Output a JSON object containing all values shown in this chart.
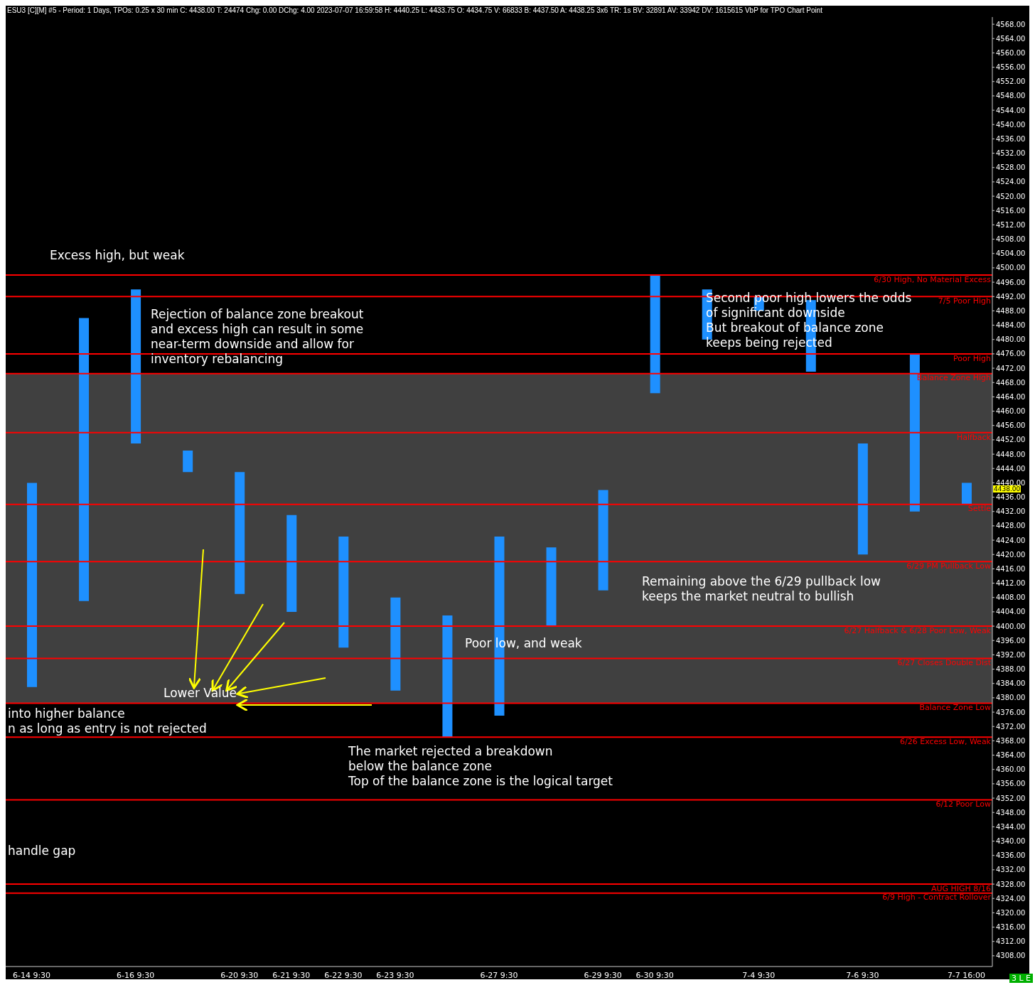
{
  "chart_data": {
    "type": "bar",
    "title": "ESU3 [C][M]  #5 - Period: 1 Days, TPOs: 0.25 x 30 min  C: 4438.00  T: 24474  Chg: 0.00  DChg: 4.00  2023-07-07 16:59:58  H: 4440.25  L: 4433.75  O: 4434.75  V: 66833  B: 4437.50  A: 4438.25  3x6  TR: 1s  BV: 32891  AV: 33942  DV: 1615615  VbP for TPO Chart  Point",
    "categories": [
      "6-14  9:30",
      null,
      "6-16  9:30",
      null,
      "6-20  9:30",
      "6-21  9:30",
      "6-22  9:30",
      "6-23  9:30",
      null,
      "6-27  9:30",
      null,
      "6-29  9:30",
      "6-30  9:30",
      null,
      "7-4  9:30",
      null,
      "7-6  9:30",
      null,
      "7-7  16:00"
    ],
    "base": [
      4383,
      4407,
      4451,
      4443,
      4409,
      4404,
      4394,
      4382,
      4369,
      4375,
      4400,
      4410,
      4465,
      4480,
      4488,
      4471,
      4420,
      4432,
      4434
    ],
    "values": [
      57,
      79,
      43,
      6,
      34,
      27,
      31,
      26,
      34,
      50,
      22,
      28,
      33,
      14,
      4,
      20,
      31,
      44,
      6
    ],
    "color": "#1e90ff",
    "ylim": [
      4305,
      4570
    ],
    "yticks": [
      {
        "value": 4308,
        "label": "4308.00"
      },
      {
        "value": 4312,
        "label": "4312.00"
      },
      {
        "value": 4316,
        "label": "4316.00"
      },
      {
        "value": 4320,
        "label": "4320.00"
      },
      {
        "value": 4324,
        "label": "4324.00"
      },
      {
        "value": 4328,
        "label": "4328.00"
      },
      {
        "value": 4332,
        "label": "4332.00"
      },
      {
        "value": 4336,
        "label": "4336.00"
      },
      {
        "value": 4340,
        "label": "4340.00"
      },
      {
        "value": 4344,
        "label": "4344.00"
      },
      {
        "value": 4348,
        "label": "4348.00"
      },
      {
        "value": 4352,
        "label": "4352.00"
      },
      {
        "value": 4356,
        "label": "4356.00"
      },
      {
        "value": 4360,
        "label": "4360.00"
      },
      {
        "value": 4364,
        "label": "4364.00"
      },
      {
        "value": 4368,
        "label": "4368.00"
      },
      {
        "value": 4372,
        "label": "4372.00"
      },
      {
        "value": 4376,
        "label": "4376.00"
      },
      {
        "value": 4380,
        "label": "4380.00"
      },
      {
        "value": 4384,
        "label": "4384.00"
      },
      {
        "value": 4388,
        "label": "4388.00"
      },
      {
        "value": 4392,
        "label": "4392.00"
      },
      {
        "value": 4396,
        "label": "4396.00"
      },
      {
        "value": 4400,
        "label": "4400.00"
      },
      {
        "value": 4404,
        "label": "4404.00"
      },
      {
        "value": 4408,
        "label": "4408.00"
      },
      {
        "value": 4412,
        "label": "4412.00"
      },
      {
        "value": 4416,
        "label": "4416.00"
      },
      {
        "value": 4420,
        "label": "4420.00"
      },
      {
        "value": 4424,
        "label": "4424.00"
      },
      {
        "value": 4428,
        "label": "4428.00"
      },
      {
        "value": 4432,
        "label": "4432.00"
      },
      {
        "value": 4436,
        "label": "4436.00"
      },
      {
        "value": 4440,
        "label": "4440.00"
      },
      {
        "value": 4444,
        "label": "4444.00"
      },
      {
        "value": 4448,
        "label": "4448.00"
      },
      {
        "value": 4452,
        "label": "4452.00"
      },
      {
        "value": 4456,
        "label": "4456.00"
      },
      {
        "value": 4460,
        "label": "4460.00"
      },
      {
        "value": 4464,
        "label": "4464.00"
      },
      {
        "value": 4468,
        "label": "4468.00"
      },
      {
        "value": 4472,
        "label": "4472.00"
      },
      {
        "value": 4476,
        "label": "4476.00"
      },
      {
        "value": 4480,
        "label": "4480.00"
      },
      {
        "value": 4484,
        "label": "4484.00"
      },
      {
        "value": 4488,
        "label": "4488.00"
      },
      {
        "value": 4492,
        "label": "4492.00"
      },
      {
        "value": 4496,
        "label": "4496.00"
      },
      {
        "value": 4500,
        "label": "4500.00"
      },
      {
        "value": 4504,
        "label": "4504.00"
      },
      {
        "value": 4508,
        "label": "4508.00"
      },
      {
        "value": 4512,
        "label": "4512.00"
      },
      {
        "value": 4516,
        "label": "4516.00"
      },
      {
        "value": 4520,
        "label": "4520.00"
      },
      {
        "value": 4524,
        "label": "4524.00"
      },
      {
        "value": 4528,
        "label": "4528.00"
      },
      {
        "value": 4532,
        "label": "4532.00"
      },
      {
        "value": 4536,
        "label": "4536.00"
      },
      {
        "value": 4540,
        "label": "4540.00"
      },
      {
        "value": 4544,
        "label": "4544.00"
      },
      {
        "value": 4548,
        "label": "4548.00"
      },
      {
        "value": 4552,
        "label": "4552.00"
      },
      {
        "value": 4556,
        "label": "4556.00"
      },
      {
        "value": 4560,
        "label": "4560.00"
      },
      {
        "value": 4564,
        "label": "4564.00"
      },
      {
        "value": 4568,
        "label": "4568.00"
      }
    ],
    "grid": false,
    "bands": [
      {
        "axis": "y",
        "from": 4378.5,
        "to": 4470.5,
        "label": null,
        "color": "#404040"
      }
    ],
    "ref_lines": [
      {
        "axis": "y",
        "value": 4498,
        "label": "6/30 High, No Material Excess",
        "color": "#ff0000"
      },
      {
        "axis": "y",
        "value": 4492,
        "label": "7/5 Poor High",
        "color": "#ff0000"
      },
      {
        "axis": "y",
        "value": 4476,
        "label": "Poor High",
        "color": "#ff0000"
      },
      {
        "axis": "y",
        "value": 4470.5,
        "label": "Balance Zone High",
        "color": "#ff0000"
      },
      {
        "axis": "y",
        "value": 4454,
        "label": "Halfback",
        "color": "#ff0000"
      },
      {
        "axis": "y",
        "value": 4434,
        "label": "Settle",
        "color": "#ff0000"
      },
      {
        "axis": "y",
        "value": 4418,
        "label": "6/29 PM Pullback Low",
        "color": "#ff0000"
      },
      {
        "axis": "y",
        "value": 4400,
        "label": "6/27 Halfback & 6/28 Poor Low, Weak",
        "color": "#ff0000"
      },
      {
        "axis": "y",
        "value": 4391,
        "label": "6/27 Closes Double Dist",
        "color": "#ff0000"
      },
      {
        "axis": "y",
        "value": 4378.5,
        "label": "Balance Zone Low",
        "color": "#ff0000"
      },
      {
        "axis": "y",
        "value": 4369,
        "label": "6/26 Excess Low, Weak",
        "color": "#ff0000"
      },
      {
        "axis": "y",
        "value": 4351.5,
        "label": "6/12 Poor Low",
        "color": "#ff0000"
      },
      {
        "axis": "y",
        "value": 4328,
        "label": "AUG HIGH 8/16",
        "color": "#ff0000"
      },
      {
        "axis": "y",
        "value": 4325.5,
        "label": "6/9 High - Contract Rollover",
        "color": "#ff0000"
      }
    ],
    "annotations": [
      "Excess high, but weak",
      "Rejection of balance zone breakout\nand excess high can result in some\nnear-term downside and allow for\ninventory rebalancing",
      "Second poor high lowers the odds\nof significant downside\nBut breakout of balance zone\nkeeps being rejected",
      "Remaining above the 6/29 pullback low\nkeeps the market neutral to bullish",
      "Poor low, and weak",
      "Lower Value",
      "into higher balance\nn as long as entry is not rejected",
      "The market rejected a breakdown\nbelow the balance zone\nTop of the balance zone is the logical target",
      "handle gap",
      "4438.00",
      "3 L E"
    ]
  }
}
